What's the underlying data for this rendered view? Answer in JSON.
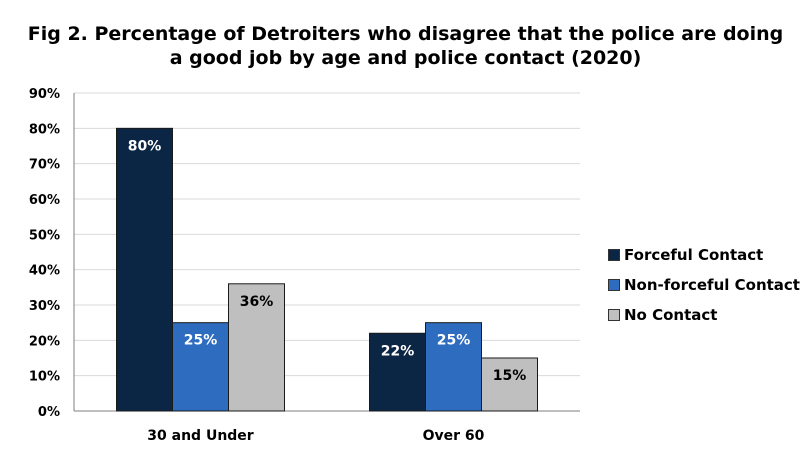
{
  "chart_data": {
    "type": "bar",
    "title": "Fig 2. Percentage of Detroiters who disagree that the police are doing a good job by age and police contact (2020)",
    "title_lines": [
      "Fig 2. Percentage of Detroiters who disagree that the police are doing",
      "a good job by age and police contact (2020)"
    ],
    "categories": [
      "30 and Under",
      "Over 60"
    ],
    "series": [
      {
        "name": "Forceful Contact",
        "values": [
          80,
          22
        ],
        "labels": [
          "80%",
          "22%"
        ],
        "color": "#0b2545",
        "label_color": "#ffffff"
      },
      {
        "name": "Non-forceful Contact",
        "values": [
          25,
          25
        ],
        "labels": [
          "25%",
          "25%"
        ],
        "color": "#2e6cc0",
        "label_color": "#ffffff"
      },
      {
        "name": "No Contact",
        "values": [
          36,
          15
        ],
        "labels": [
          "36%",
          "15%"
        ],
        "color": "#bfbfbf",
        "label_color": "#000000"
      }
    ],
    "ylim": [
      0,
      90
    ],
    "yticks": [
      "0%",
      "10%",
      "20%",
      "30%",
      "40%",
      "50%",
      "60%",
      "70%",
      "80%",
      "90%"
    ],
    "grid": true,
    "legend_position": "right"
  }
}
